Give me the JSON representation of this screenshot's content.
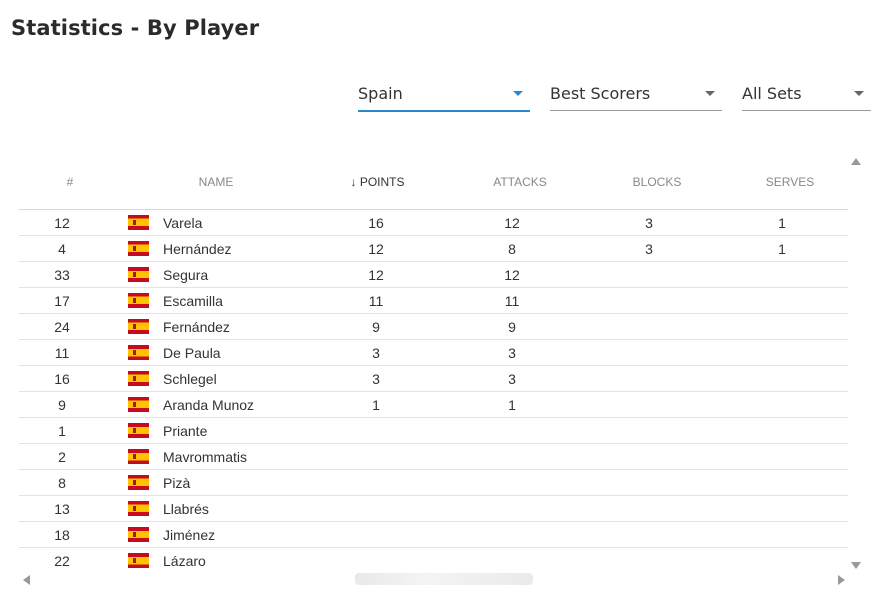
{
  "page": {
    "title": "Statistics - By Player"
  },
  "filters": {
    "team": "Spain",
    "category": "Best Scorers",
    "sets": "All Sets"
  },
  "colors": {
    "accent": "#2f86c8",
    "flag_red": "#c60b1e",
    "flag_yellow": "#ffc400"
  },
  "icons": {
    "sort": "arrow-down-icon",
    "flag": "spain-flag-icon"
  },
  "table": {
    "headers": {
      "number": "#",
      "name": "Name",
      "points": "↓ POINTS",
      "attacks": "ATTACKS",
      "blocks": "BLOCKS",
      "serves": "SERVES"
    },
    "rows": [
      {
        "number": "12",
        "name": "Varela",
        "points": "16",
        "attacks": "12",
        "blocks": "3",
        "serves": "1"
      },
      {
        "number": "4",
        "name": "Hernández",
        "points": "12",
        "attacks": "8",
        "blocks": "3",
        "serves": "1"
      },
      {
        "number": "33",
        "name": "Segura",
        "points": "12",
        "attacks": "12",
        "blocks": "",
        "serves": ""
      },
      {
        "number": "17",
        "name": "Escamilla",
        "points": "11",
        "attacks": "11",
        "blocks": "",
        "serves": ""
      },
      {
        "number": "24",
        "name": "Fernández",
        "points": "9",
        "attacks": "9",
        "blocks": "",
        "serves": ""
      },
      {
        "number": "11",
        "name": "De Paula",
        "points": "3",
        "attacks": "3",
        "blocks": "",
        "serves": ""
      },
      {
        "number": "16",
        "name": "Schlegel",
        "points": "3",
        "attacks": "3",
        "blocks": "",
        "serves": ""
      },
      {
        "number": "9",
        "name": "Aranda Munoz",
        "points": "1",
        "attacks": "1",
        "blocks": "",
        "serves": ""
      },
      {
        "number": "1",
        "name": "Priante",
        "points": "",
        "attacks": "",
        "blocks": "",
        "serves": ""
      },
      {
        "number": "2",
        "name": "Mavrommatis",
        "points": "",
        "attacks": "",
        "blocks": "",
        "serves": ""
      },
      {
        "number": "8",
        "name": "Pizà",
        "points": "",
        "attacks": "",
        "blocks": "",
        "serves": ""
      },
      {
        "number": "13",
        "name": "Llabrés",
        "points": "",
        "attacks": "",
        "blocks": "",
        "serves": ""
      },
      {
        "number": "18",
        "name": "Jiménez",
        "points": "",
        "attacks": "",
        "blocks": "",
        "serves": ""
      },
      {
        "number": "22",
        "name": "Lázaro",
        "points": "",
        "attacks": "",
        "blocks": "",
        "serves": ""
      }
    ]
  }
}
